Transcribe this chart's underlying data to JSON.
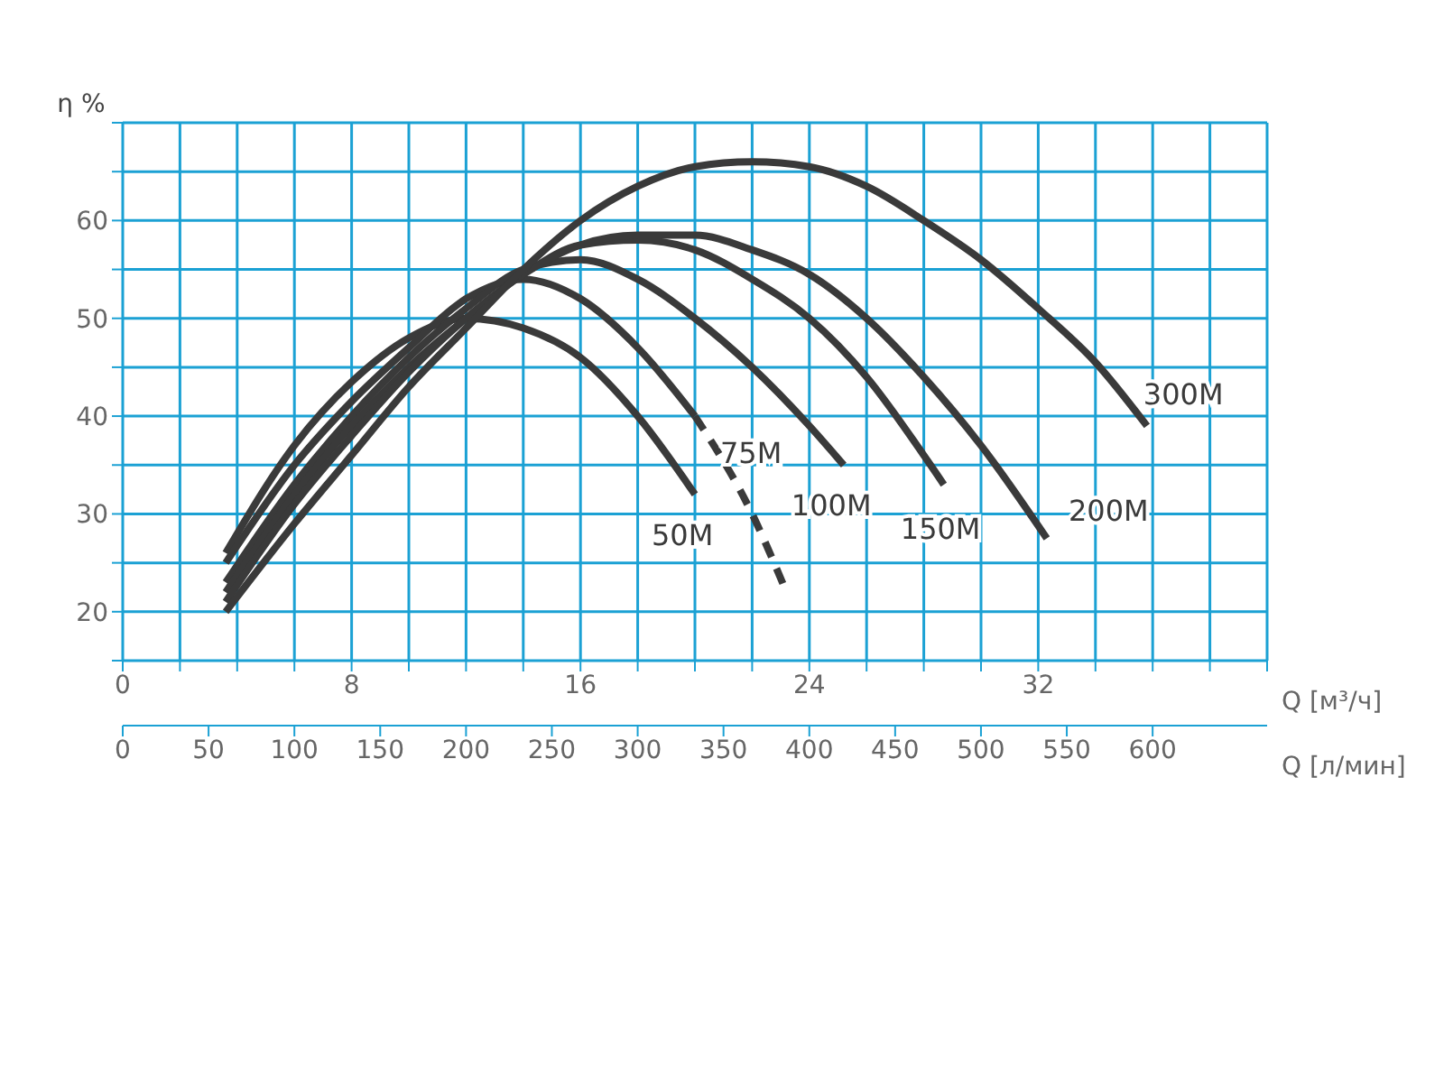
{
  "chart_data": {
    "type": "line",
    "xlabel": "Q [м³/ч]",
    "ylabel": "η %",
    "x2label": "Q [л/мин]",
    "xlim": [
      0,
      40
    ],
    "xticks": [
      0,
      {
        "value": 2,
        "label": null
      },
      {
        "value": 4,
        "label": null
      },
      {
        "value": 6,
        "label": null
      },
      8,
      {
        "value": 10,
        "label": null
      },
      {
        "value": 12,
        "label": null
      },
      {
        "value": 14,
        "label": null
      },
      16,
      {
        "value": 18,
        "label": null
      },
      {
        "value": 20,
        "label": null
      },
      {
        "value": 22,
        "label": null
      },
      24,
      {
        "value": 26,
        "label": null
      },
      {
        "value": 28,
        "label": null
      },
      {
        "value": 30,
        "label": null
      },
      32,
      {
        "value": 34,
        "label": null
      },
      {
        "value": 36,
        "label": null
      },
      {
        "value": 38,
        "label": null
      },
      {
        "value": 40,
        "label": null
      }
    ],
    "x2lim": [
      0,
      666.7
    ],
    "x2ticks": [
      0,
      50,
      100,
      150,
      200,
      250,
      300,
      350,
      400,
      450,
      500,
      550,
      600
    ],
    "ylim": [
      15,
      70
    ],
    "yticks": [
      {
        "value": 15,
        "label": null
      },
      20,
      {
        "value": 25,
        "label": null
      },
      30,
      {
        "value": 35,
        "label": null
      },
      40,
      {
        "value": 45,
        "label": null
      },
      50,
      {
        "value": 55,
        "label": null
      },
      60,
      {
        "value": 65,
        "label": null
      },
      {
        "value": 70,
        "label": null
      }
    ],
    "grid": true,
    "legend": false,
    "marker": "none",
    "line_style": "solid",
    "series": [
      {
        "name": "50M",
        "color": "#3a3a3a",
        "x": [
          3.6,
          6,
          8,
          10,
          12,
          14,
          16,
          18,
          20
        ],
        "values": [
          26,
          37,
          43.5,
          48,
          50,
          49,
          46,
          40,
          32
        ]
      },
      {
        "name": "75M",
        "color": "#3a3a3a",
        "x": [
          3.6,
          6,
          8,
          10,
          12,
          14,
          16,
          18,
          20
        ],
        "values": [
          25,
          35,
          41.5,
          47,
          52,
          54,
          52,
          47,
          40
        ]
      },
      {
        "color": "#3a3a3a",
        "line_style": "dashed",
        "x": [
          20,
          22,
          23.2
        ],
        "values": [
          40,
          30,
          22
        ]
      },
      {
        "name": "100M",
        "color": "#3a3a3a",
        "x": [
          3.6,
          6,
          8,
          10,
          12,
          14,
          16,
          18,
          20,
          22,
          24,
          25.2
        ],
        "values": [
          23,
          33,
          40,
          46,
          51,
          55,
          56,
          54,
          50,
          45,
          39,
          35
        ]
      },
      {
        "name": "150M",
        "color": "#3a3a3a",
        "x": [
          3.6,
          6,
          8,
          10,
          12,
          14,
          16,
          18,
          20,
          22,
          24,
          26,
          28,
          28.7
        ],
        "values": [
          22,
          32,
          39,
          45,
          50,
          54.5,
          57.5,
          58,
          57,
          54,
          50,
          44,
          36,
          33
        ]
      },
      {
        "name": "200M",
        "color": "#3a3a3a",
        "x": [
          3.6,
          6,
          8,
          10,
          12,
          14,
          16,
          18,
          20,
          22,
          24,
          26,
          28,
          30,
          32.3
        ],
        "values": [
          21,
          31,
          38,
          44.5,
          50,
          54.5,
          57.5,
          58.5,
          58.5,
          57,
          54.5,
          50,
          44,
          37,
          27.5
        ]
      },
      {
        "name": "300M",
        "color": "#3a3a3a",
        "x": [
          3.6,
          6,
          8,
          10,
          12,
          14,
          16,
          18,
          20,
          22,
          24,
          26,
          28,
          30,
          32,
          34,
          35.8
        ],
        "values": [
          20,
          29,
          36,
          43,
          49,
          55,
          60,
          63.5,
          65.5,
          66,
          65.5,
          63.5,
          60,
          56,
          51,
          45.5,
          39
        ]
      }
    ]
  }
}
